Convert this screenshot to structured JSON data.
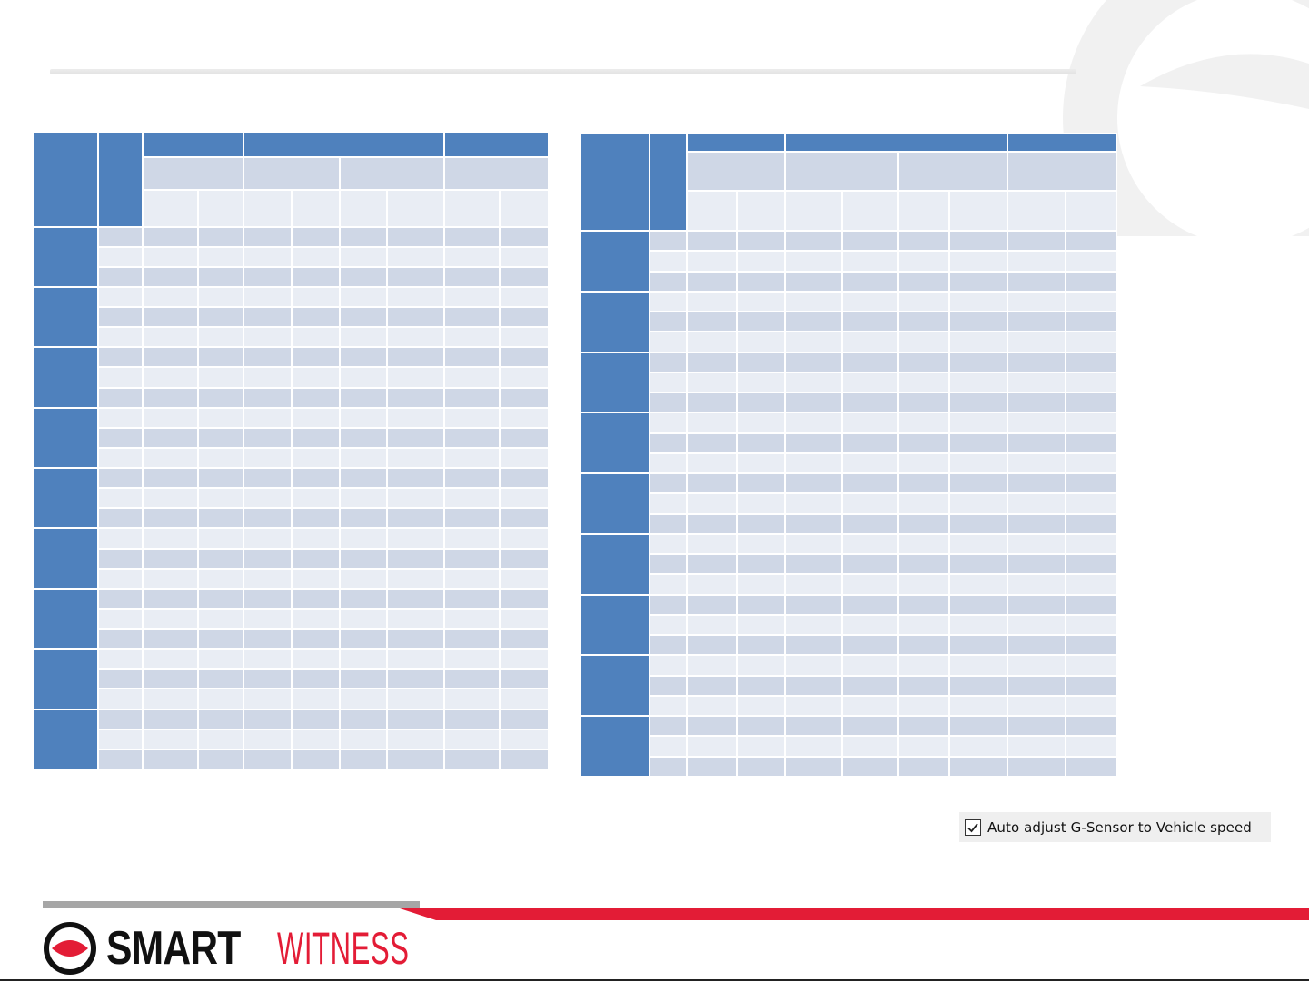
{
  "settings": {
    "auto_adjust_label": "Auto adjust G-Sensor to Vehicle speed",
    "auto_adjust_checked": true
  },
  "footer": {
    "logo_word_1": "SMART",
    "logo_word_2": "WITNESS"
  },
  "colors": {
    "header_blue": "#4f81bd",
    "band_dark": "#cfd7e6",
    "band_light": "#e9edf4",
    "brand_red": "#e31c36",
    "logo_black": "#111111"
  },
  "icons": {
    "checkbox": "checkmark-icon",
    "logo": "eye-logo-icon"
  }
}
